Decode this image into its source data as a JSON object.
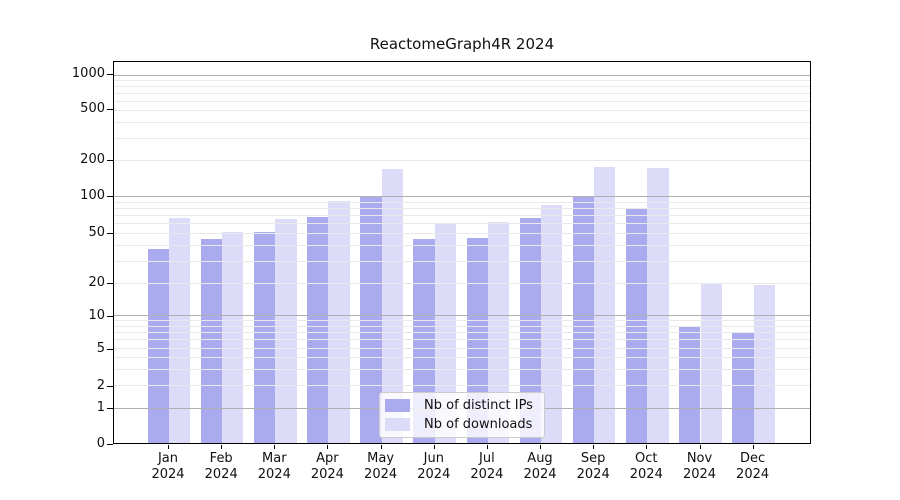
{
  "chart_data": {
    "type": "bar",
    "title": "ReactomeGraph4R 2024",
    "categories": [
      "Jan 2024",
      "Feb 2024",
      "Mar 2024",
      "Apr 2024",
      "May 2024",
      "Jun 2024",
      "Jul 2024",
      "Aug 2024",
      "Sep 2024",
      "Oct 2024",
      "Nov 2024",
      "Dec 2024"
    ],
    "series": [
      {
        "name": "Nb of distinct IPs",
        "color": "#aaaaee",
        "values": [
          37,
          45,
          51,
          67,
          101,
          45,
          46,
          66,
          101,
          78,
          8,
          7
        ]
      },
      {
        "name": "Nb of downloads",
        "color": "#dcdcf8",
        "values": [
          66,
          51,
          65,
          92,
          168,
          60,
          62,
          84,
          176,
          171,
          20,
          19
        ]
      }
    ],
    "yticks": [
      0,
      1,
      2,
      5,
      10,
      20,
      50,
      100,
      200,
      500,
      1000
    ],
    "ylim": [
      0,
      1200
    ],
    "yscale": "log-like",
    "xlabel": "",
    "ylabel": "",
    "grid": true,
    "legend_position": "lower center",
    "colors": {
      "major_grid": "#b0b0b0",
      "minor_grid": "#e9e9e9",
      "axis": "#000000",
      "text": "#111111",
      "legend_border": "#cccccc"
    }
  }
}
